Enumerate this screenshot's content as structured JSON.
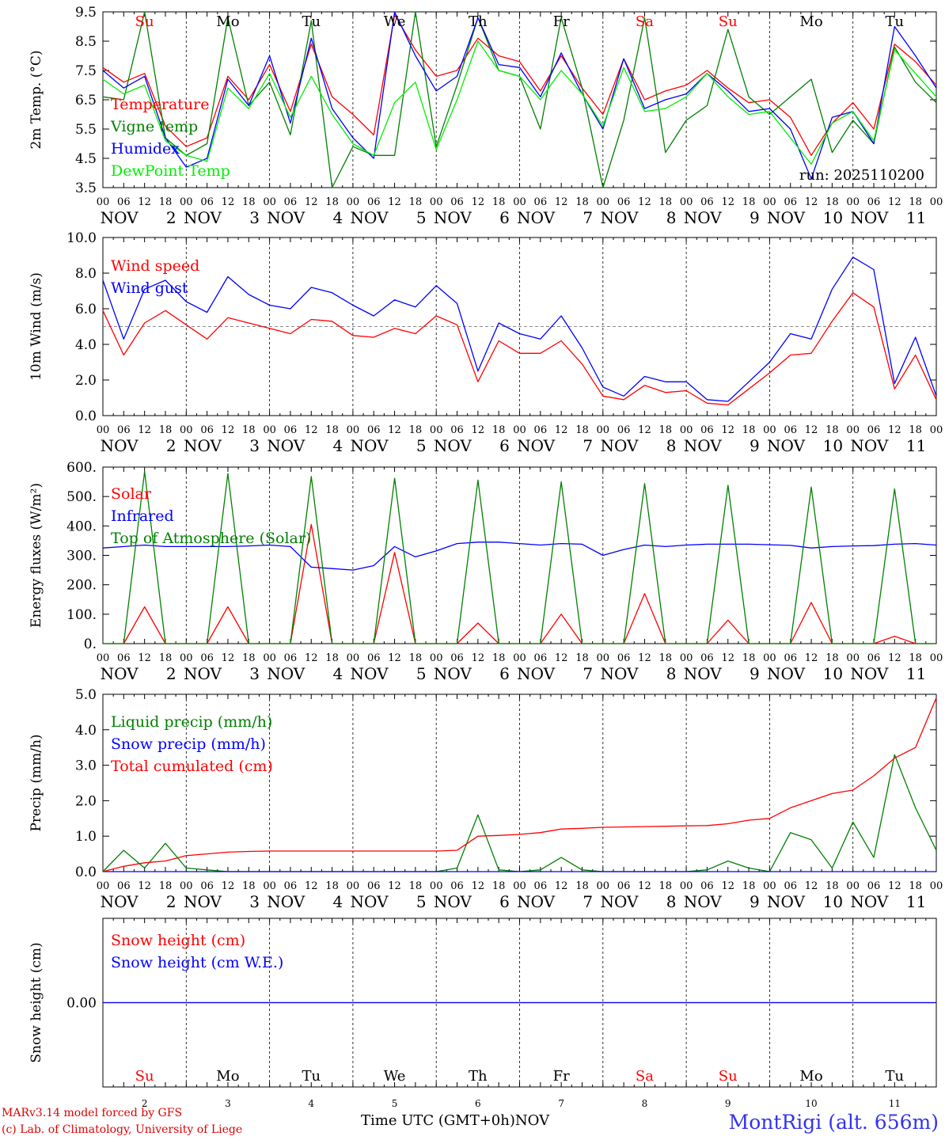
{
  "colors": {
    "red": "#ff0000",
    "green": "#008000",
    "blue": "#0000ff",
    "lightgreen": "#00ee00",
    "grid": "#000000",
    "station": "#3333ee"
  },
  "days": [
    {
      "abbr": "Su",
      "num": "2",
      "weekend": true
    },
    {
      "abbr": "Mo",
      "num": "3",
      "weekend": false
    },
    {
      "abbr": "Tu",
      "num": "4",
      "weekend": false
    },
    {
      "abbr": "We",
      "num": "5",
      "weekend": false
    },
    {
      "abbr": "Th",
      "num": "6",
      "weekend": false
    },
    {
      "abbr": "Fr",
      "num": "7",
      "weekend": false
    },
    {
      "abbr": "Sa",
      "num": "8",
      "weekend": true
    },
    {
      "abbr": "Su",
      "num": "9",
      "weekend": true
    },
    {
      "abbr": "Mo",
      "num": "10",
      "weekend": false
    },
    {
      "abbr": "Tu",
      "num": "11",
      "weekend": false
    }
  ],
  "hour_ticks": [
    "00",
    "06",
    "12",
    "18"
  ],
  "month": "NOV",
  "footer": {
    "credit_line1": "MARv3.14 model forced by GFS",
    "credit_line2": "(c) Lab. of Climatology, University of Liege",
    "x_axis_title": "Time UTC (GMT+0h)",
    "month_label": "NOV",
    "station": "MontRigi (alt. 656m)"
  },
  "chart_data": [
    {
      "type": "line",
      "ylabel": "2m Temp. (°C)",
      "ylim": [
        3.5,
        9.5
      ],
      "yticks": [
        3.5,
        4.5,
        5.5,
        6.5,
        7.5,
        8.5,
        9.5
      ],
      "ytick_labels": [
        "3.5",
        "4.5",
        "5.5",
        "6.5",
        "7.5",
        "8.5",
        "9.5"
      ],
      "annotation": "run: 2025110200",
      "x_hours": [
        0,
        6,
        12,
        18,
        24,
        30,
        36,
        42,
        48,
        54,
        60,
        66,
        72,
        78,
        84,
        90,
        96,
        102,
        108,
        114,
        120,
        126,
        132,
        138,
        144,
        150,
        156,
        162,
        168,
        174,
        180,
        186,
        192,
        198,
        204,
        210,
        216,
        222,
        228,
        234,
        240
      ],
      "series": [
        {
          "name": "Temperature",
          "color": "red",
          "values": [
            7.6,
            7.1,
            7.4,
            5.6,
            4.9,
            5.2,
            7.3,
            6.5,
            7.7,
            6.1,
            8.4,
            6.6,
            6.0,
            5.3,
            9.4,
            8.2,
            7.3,
            7.5,
            8.6,
            8.0,
            7.8,
            6.8,
            8.0,
            6.9,
            6.0,
            7.9,
            6.5,
            6.8,
            7.0,
            7.5,
            6.9,
            6.4,
            6.5,
            5.9,
            4.6,
            5.7,
            6.4,
            5.5,
            8.4,
            7.8,
            7.0
          ]
        },
        {
          "name": "Vigne temp",
          "color": "green",
          "values": [
            6.6,
            6.5,
            9.5,
            5.2,
            4.6,
            5.0,
            9.3,
            6.3,
            7.1,
            5.3,
            9.2,
            3.0,
            4.9,
            4.6,
            4.6,
            9.5,
            4.9,
            7.0,
            9.3,
            7.5,
            7.3,
            5.5,
            9.3,
            6.9,
            2.8,
            5.8,
            9.3,
            4.7,
            5.8,
            6.3,
            8.9,
            6.6,
            6.0,
            6.6,
            7.2,
            4.7,
            5.8,
            5.0,
            8.3,
            7.1,
            6.4
          ]
        },
        {
          "name": "Humidex",
          "color": "blue",
          "values": [
            7.5,
            6.9,
            7.3,
            5.2,
            4.2,
            4.5,
            7.2,
            6.3,
            8.0,
            5.7,
            8.6,
            6.2,
            5.2,
            4.5,
            9.5,
            8.0,
            6.8,
            7.3,
            9.3,
            7.7,
            7.6,
            6.6,
            8.1,
            6.7,
            5.5,
            7.9,
            6.2,
            6.5,
            6.7,
            7.4,
            6.8,
            6.1,
            6.2,
            5.5,
            3.8,
            5.9,
            6.1,
            5.0,
            9.0,
            8.0,
            6.9
          ]
        },
        {
          "name": "DewPoint Temp",
          "color": "lightgreen",
          "values": [
            7.2,
            6.7,
            7.0,
            5.1,
            4.6,
            4.4,
            6.9,
            6.2,
            7.4,
            5.9,
            7.3,
            6.0,
            5.0,
            4.6,
            6.4,
            7.1,
            4.8,
            6.5,
            8.5,
            7.5,
            7.3,
            6.5,
            7.5,
            6.7,
            5.6,
            7.6,
            6.1,
            6.2,
            6.6,
            7.4,
            6.6,
            6.0,
            6.1,
            5.2,
            4.3,
            5.7,
            6.1,
            5.1,
            8.2,
            7.4,
            6.6
          ]
        }
      ]
    },
    {
      "type": "line",
      "ylabel": "10m Wind (m/s)",
      "ylim": [
        0,
        10
      ],
      "yticks": [
        0,
        2,
        4,
        6,
        8,
        10
      ],
      "ytick_labels": [
        "0.0",
        "2.0",
        "4.0",
        "6.0",
        "8.0",
        "10.0"
      ],
      "reference_line": 5.0,
      "x_hours": [
        0,
        6,
        12,
        18,
        24,
        30,
        36,
        42,
        48,
        54,
        60,
        66,
        72,
        78,
        84,
        90,
        96,
        102,
        108,
        114,
        120,
        126,
        132,
        138,
        144,
        150,
        156,
        162,
        168,
        174,
        180,
        186,
        192,
        198,
        204,
        210,
        216,
        222,
        228,
        234,
        240
      ],
      "series": [
        {
          "name": "Wind speed",
          "color": "red",
          "values": [
            5.9,
            3.4,
            5.2,
            5.9,
            5.1,
            4.3,
            5.5,
            5.2,
            4.9,
            4.6,
            5.4,
            5.3,
            4.5,
            4.4,
            4.9,
            4.6,
            5.6,
            5.1,
            1.9,
            4.2,
            3.5,
            3.5,
            4.2,
            2.9,
            1.1,
            0.9,
            1.7,
            1.3,
            1.4,
            0.7,
            0.6,
            1.5,
            2.4,
            3.4,
            3.5,
            5.3,
            6.9,
            6.1,
            1.5,
            3.4,
            0.9
          ]
        },
        {
          "name": "Wind gust",
          "color": "blue",
          "values": [
            7.6,
            4.3,
            7.1,
            7.6,
            6.4,
            5.8,
            7.8,
            6.8,
            6.2,
            6.0,
            7.2,
            6.9,
            6.2,
            5.6,
            6.5,
            6.1,
            7.3,
            6.3,
            2.5,
            5.2,
            4.6,
            4.3,
            5.6,
            3.8,
            1.6,
            1.1,
            2.2,
            1.9,
            1.9,
            0.9,
            0.8,
            1.9,
            3.0,
            4.6,
            4.3,
            7.1,
            8.9,
            8.2,
            1.8,
            4.4,
            1.1
          ]
        }
      ]
    },
    {
      "type": "line",
      "ylabel": "Energy fluxes (W/m²)",
      "ylim": [
        0,
        600
      ],
      "yticks": [
        0,
        100,
        200,
        300,
        400,
        500,
        600
      ],
      "ytick_labels": [
        "0.",
        "100.",
        "200.",
        "300.",
        "400.",
        "500.",
        "600."
      ],
      "x_hours": [
        0,
        6,
        12,
        18,
        24,
        30,
        36,
        42,
        48,
        54,
        60,
        66,
        72,
        78,
        84,
        90,
        96,
        102,
        108,
        114,
        120,
        126,
        132,
        138,
        144,
        150,
        156,
        162,
        168,
        174,
        180,
        186,
        192,
        198,
        204,
        210,
        216,
        222,
        228,
        234,
        240
      ],
      "series": [
        {
          "name": "Solar",
          "color": "red",
          "values": [
            0,
            0,
            125,
            0,
            0,
            0,
            125,
            0,
            0,
            0,
            405,
            0,
            0,
            0,
            310,
            0,
            0,
            0,
            70,
            0,
            0,
            0,
            100,
            0,
            0,
            0,
            170,
            0,
            0,
            0,
            80,
            0,
            0,
            0,
            140,
            0,
            0,
            0,
            25,
            0,
            0
          ]
        },
        {
          "name": "Infrared",
          "color": "blue",
          "values": [
            325,
            330,
            335,
            330,
            330,
            330,
            330,
            332,
            335,
            330,
            260,
            255,
            250,
            265,
            330,
            295,
            315,
            340,
            345,
            345,
            340,
            335,
            340,
            338,
            300,
            320,
            335,
            330,
            335,
            338,
            338,
            338,
            336,
            334,
            325,
            330,
            332,
            333,
            338,
            340,
            335
          ]
        },
        {
          "name": "Top of Atmosphere (Solar)",
          "color": "green",
          "values": [
            0,
            0,
            585,
            0,
            0,
            0,
            578,
            0,
            0,
            0,
            568,
            0,
            0,
            0,
            562,
            0,
            0,
            0,
            556,
            0,
            0,
            0,
            550,
            0,
            0,
            0,
            544,
            0,
            0,
            0,
            538,
            0,
            0,
            0,
            532,
            0,
            0,
            0,
            526,
            0,
            0
          ]
        }
      ]
    },
    {
      "type": "line",
      "ylabel": "Precip (mm/h)",
      "ylim": [
        0,
        5
      ],
      "yticks": [
        0,
        1,
        2,
        3,
        4,
        5
      ],
      "ytick_labels": [
        "0.0",
        "1.0",
        "2.0",
        "3.0",
        "4.0",
        "5.0"
      ],
      "x_hours": [
        0,
        6,
        12,
        18,
        24,
        30,
        36,
        42,
        48,
        54,
        60,
        66,
        72,
        78,
        84,
        90,
        96,
        102,
        108,
        114,
        120,
        126,
        132,
        138,
        144,
        150,
        156,
        162,
        168,
        174,
        180,
        186,
        192,
        198,
        204,
        210,
        216,
        222,
        228,
        234,
        240
      ],
      "series": [
        {
          "name": "Liquid precip (mm/h)",
          "color": "green",
          "values": [
            0,
            0.6,
            0.1,
            0.8,
            0.1,
            0.05,
            0,
            0,
            0,
            0,
            0,
            0,
            0,
            0,
            0,
            0,
            0,
            0.1,
            1.6,
            0.05,
            0,
            0.05,
            0.4,
            0.05,
            0,
            0,
            0,
            0,
            0,
            0.05,
            0.3,
            0.1,
            0,
            1.1,
            0.9,
            0.1,
            1.4,
            0.4,
            3.3,
            1.8,
            0.6
          ]
        },
        {
          "name": "Snow precip (mm/h)",
          "color": "blue",
          "values": [
            0,
            0,
            0,
            0,
            0,
            0,
            0,
            0,
            0,
            0,
            0,
            0,
            0,
            0,
            0,
            0,
            0,
            0,
            0,
            0,
            0,
            0,
            0,
            0,
            0,
            0,
            0,
            0,
            0,
            0,
            0,
            0,
            0,
            0,
            0,
            0,
            0,
            0,
            0,
            0,
            0
          ]
        },
        {
          "name": "Total cumulated (cm)",
          "color": "red",
          "values": [
            0,
            0.15,
            0.25,
            0.3,
            0.45,
            0.5,
            0.55,
            0.57,
            0.58,
            0.58,
            0.58,
            0.58,
            0.58,
            0.58,
            0.58,
            0.58,
            0.58,
            0.6,
            1.0,
            1.02,
            1.05,
            1.1,
            1.2,
            1.22,
            1.25,
            1.26,
            1.27,
            1.28,
            1.29,
            1.3,
            1.35,
            1.45,
            1.5,
            1.8,
            2.0,
            2.2,
            2.3,
            2.7,
            3.2,
            3.5,
            4.9
          ]
        }
      ]
    },
    {
      "type": "line",
      "ylabel": "Snow height (cm)",
      "ylim": [
        -1,
        1
      ],
      "yticks": [
        0
      ],
      "ytick_labels": [
        "0.00"
      ],
      "x_hours": [
        0,
        240
      ],
      "series": [
        {
          "name": "Snow height (cm)",
          "color": "red",
          "values": [
            0,
            0
          ]
        },
        {
          "name": "Snow height (cm W.E.)",
          "color": "blue",
          "values": [
            0,
            0
          ]
        }
      ]
    }
  ]
}
